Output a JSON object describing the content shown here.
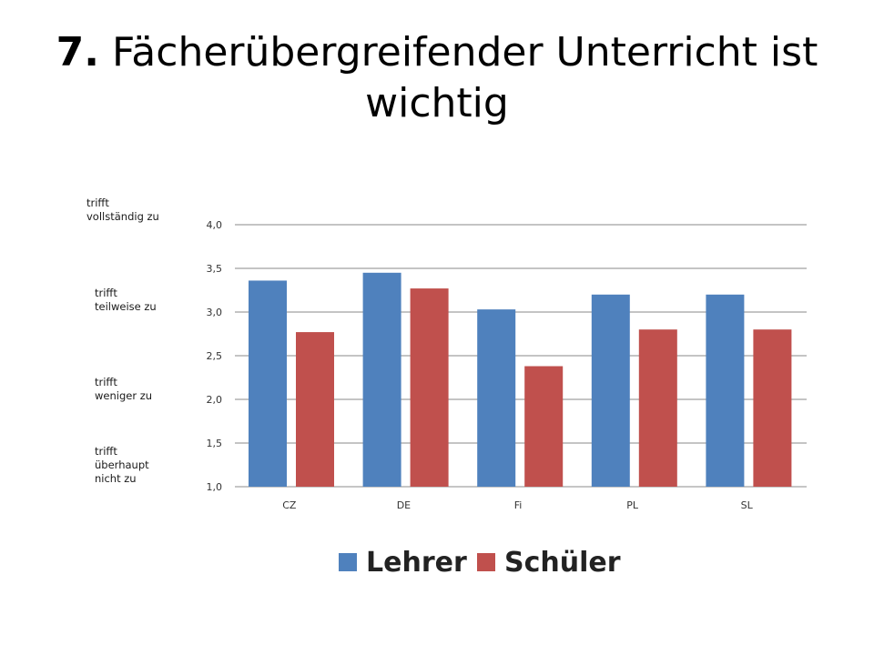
{
  "slide": {
    "title_number": "7.",
    "title_text": "Fächerübergreifender Unterricht ist wichtig"
  },
  "scale_labels": [
    "trifft\nvollständig zu",
    "trifft\nteilweise zu",
    "trifft\nweniger zu",
    "trifft\nüberhaupt\nnicht  zu"
  ],
  "chart_data": {
    "type": "bar",
    "categories": [
      "CZ",
      "DE",
      "Fi",
      "PL",
      "SL"
    ],
    "series": [
      {
        "name": "Lehrer",
        "color": "#4f81bd",
        "values": [
          3.36,
          3.45,
          3.03,
          3.2,
          3.2
        ]
      },
      {
        "name": "Schüler",
        "color": "#c0504d",
        "values": [
          2.77,
          3.27,
          2.38,
          2.8,
          2.8
        ]
      }
    ],
    "ylim": [
      1.0,
      4.0
    ],
    "yticks": [
      "1,0",
      "1,5",
      "2,0",
      "2,5",
      "3,0",
      "3,5",
      "4,0"
    ],
    "grid": true,
    "legend_position": "bottom"
  }
}
